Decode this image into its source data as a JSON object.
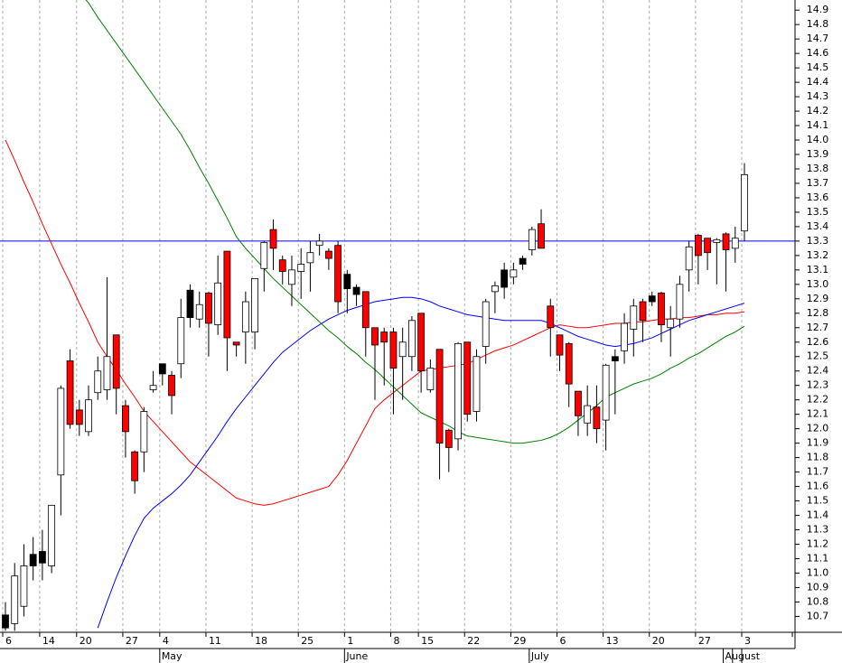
{
  "chart_data": {
    "type": "candlestick",
    "categories": [
      "6",
      null,
      null,
      null,
      "14",
      null,
      null,
      null,
      "20",
      null,
      null,
      null,
      null,
      "27",
      null,
      null,
      null,
      "4",
      null,
      null,
      null,
      null,
      "11",
      null,
      null,
      null,
      null,
      "18",
      null,
      null,
      null,
      null,
      "25",
      null,
      null,
      null,
      null,
      "1",
      null,
      null,
      null,
      null,
      "8",
      null,
      null,
      "15",
      null,
      null,
      null,
      null,
      "22",
      null,
      null,
      null,
      null,
      "29",
      null,
      null,
      null,
      null,
      "6",
      null,
      null,
      null,
      null,
      "13",
      null,
      null,
      null,
      null,
      "20",
      null,
      null,
      null,
      null,
      "27",
      null,
      null,
      null,
      null,
      "3"
    ],
    "months": [
      null,
      null,
      null,
      null,
      null,
      null,
      null,
      null,
      null,
      null,
      null,
      null,
      null,
      null,
      null,
      null,
      null,
      "May",
      null,
      null,
      null,
      null,
      null,
      null,
      null,
      null,
      null,
      null,
      null,
      null,
      null,
      null,
      null,
      null,
      null,
      null,
      null,
      "June",
      null,
      null,
      null,
      null,
      null,
      null,
      null,
      null,
      null,
      null,
      null,
      null,
      null,
      null,
      null,
      null,
      null,
      null,
      null,
      "July",
      null,
      null,
      null,
      null,
      null,
      null,
      null,
      null,
      null,
      null,
      null,
      null,
      null,
      null,
      null,
      null,
      null,
      null,
      null,
      null,
      "August"
    ],
    "open": [
      10.71,
      10.65,
      10.77,
      11.13,
      11.15,
      11.05,
      11.68,
      12.47,
      12.13,
      11.98,
      12.25,
      12.27,
      12.65,
      12.16,
      11.84,
      11.84,
      12.27,
      12.45,
      12.37,
      12.45,
      12.96,
      12.76,
      12.94,
      12.72,
      13.23,
      12.6,
      12.67,
      12.67,
      13.11,
      13.38,
      13.17,
      13.0,
      13.09,
      13.15,
      13.27,
      13.23,
      13.27,
      13.07,
      12.98,
      12.95,
      12.7,
      12.67,
      12.67,
      12.5,
      12.5,
      12.8,
      12.27,
      12.55,
      11.99,
      11.93,
      12.6,
      12.12,
      12.57,
      12.95,
      13.1,
      13.05,
      13.18,
      13.24,
      13.42,
      12.85,
      12.65,
      12.59,
      12.26,
      12.04,
      12.15,
      12.06,
      12.5,
      12.54,
      12.69,
      12.88,
      12.92,
      12.94,
      12.7,
      12.76,
      13.1,
      13.34,
      13.32,
      13.29,
      13.35,
      13.25,
      13.37
    ],
    "high": [
      10.8,
      11.07,
      11.2,
      11.25,
      11.3,
      11.47,
      12.3,
      12.55,
      12.2,
      12.3,
      12.5,
      13.05,
      12.65,
      12.2,
      11.85,
      12.15,
      12.4,
      12.45,
      12.4,
      12.9,
      13.0,
      12.95,
      12.95,
      13.2,
      13.23,
      12.6,
      12.95,
      13.04,
      13.3,
      13.45,
      13.2,
      13.2,
      13.25,
      13.3,
      13.35,
      13.25,
      13.3,
      13.1,
      13.0,
      12.95,
      12.7,
      12.7,
      12.7,
      12.7,
      12.78,
      12.8,
      12.48,
      12.55,
      12.0,
      12.6,
      12.6,
      12.55,
      12.9,
      13.02,
      13.15,
      13.15,
      13.2,
      13.4,
      13.52,
      12.9,
      12.65,
      12.6,
      12.26,
      12.3,
      12.3,
      12.45,
      12.55,
      12.8,
      12.9,
      12.9,
      12.95,
      12.95,
      12.85,
      13.06,
      13.3,
      13.35,
      13.32,
      13.32,
      13.36,
      13.4,
      13.84
    ],
    "low": [
      10.6,
      10.6,
      10.7,
      10.95,
      10.95,
      11.0,
      11.4,
      12.0,
      11.95,
      11.95,
      12.2,
      12.2,
      12.1,
      11.8,
      11.55,
      11.7,
      12.25,
      12.3,
      12.1,
      12.35,
      12.7,
      12.7,
      12.5,
      12.65,
      12.4,
      12.5,
      12.45,
      12.55,
      12.95,
      13.1,
      13.0,
      12.85,
      12.9,
      12.95,
      13.2,
      13.1,
      12.8,
      12.8,
      12.85,
      12.5,
      12.2,
      12.3,
      12.1,
      12.2,
      12.4,
      12.25,
      12.25,
      11.65,
      11.7,
      11.85,
      12.05,
      12.05,
      12.45,
      12.8,
      12.9,
      13.0,
      13.1,
      13.2,
      13.25,
      12.5,
      12.4,
      12.15,
      11.95,
      11.95,
      11.9,
      11.85,
      12.1,
      12.45,
      12.5,
      12.6,
      12.85,
      12.6,
      12.5,
      12.7,
      12.95,
      13.0,
      13.1,
      13.0,
      12.95,
      13.15,
      13.3
    ],
    "close": [
      10.62,
      10.98,
      11.05,
      11.05,
      11.07,
      11.47,
      12.28,
      12.03,
      12.03,
      12.2,
      12.4,
      12.5,
      12.28,
      11.98,
      11.64,
      12.12,
      12.3,
      12.38,
      12.23,
      12.77,
      12.77,
      12.86,
      12.73,
      13.01,
      12.63,
      12.58,
      12.88,
      13.04,
      13.29,
      13.25,
      13.09,
      13.1,
      13.14,
      13.22,
      13.3,
      13.18,
      12.88,
      12.97,
      12.93,
      12.7,
      12.58,
      12.6,
      12.42,
      12.6,
      12.75,
      12.4,
      12.42,
      11.9,
      11.87,
      12.59,
      12.1,
      12.5,
      12.88,
      12.99,
      12.98,
      13.1,
      13.14,
      13.38,
      13.25,
      12.7,
      12.51,
      12.31,
      12.09,
      12.16,
      12.0,
      12.44,
      12.47,
      12.73,
      12.85,
      12.75,
      12.88,
      12.72,
      12.76,
      13.0,
      13.26,
      13.2,
      13.22,
      13.31,
      13.24,
      13.32,
      13.76
    ],
    "candle_colors": [
      "#000000",
      "#ffffff",
      "#ffffff",
      "#000000",
      "#000000",
      "#ffffff",
      "#ffffff",
      "#ff0000",
      "#ff0000",
      "#ffffff",
      "#ffffff",
      "#ffffff",
      "#ff0000",
      "#ff0000",
      "#ff0000",
      "#ffffff",
      "#ffffff",
      "#000000",
      "#ff0000",
      "#ffffff",
      "#000000",
      "#ffffff",
      "#ff0000",
      "#ffffff",
      "#ff0000",
      "#ff0000",
      "#ffffff",
      "#ffffff",
      "#ffffff",
      "#ff0000",
      "#ff0000",
      "#ffffff",
      "#ffffff",
      "#ffffff",
      "#ffffff",
      "#ff0000",
      "#ff0000",
      "#000000",
      "#000000",
      "#ff0000",
      "#ff0000",
      "#ff0000",
      "#ff0000",
      "#ffffff",
      "#ffffff",
      "#ff0000",
      "#ffffff",
      "#ff0000",
      "#ff0000",
      "#ffffff",
      "#ff0000",
      "#ffffff",
      "#ffffff",
      "#ffffff",
      "#000000",
      "#ffffff",
      "#000000",
      "#ffffff",
      "#ff0000",
      "#ff0000",
      "#ff0000",
      "#ff0000",
      "#ff0000",
      "#ffffff",
      "#ff0000",
      "#ffffff",
      "#000000",
      "#ffffff",
      "#ffffff",
      "#ff0000",
      "#000000",
      "#ff0000",
      "#ffffff",
      "#ffffff",
      "#ffffff",
      "#ff0000",
      "#ff0000",
      "#ffffff",
      "#ff0000",
      "#ffffff",
      "#ffffff"
    ],
    "lines": [
      {
        "color": "#ff0000",
        "values": [
          14.0,
          13.86,
          13.71,
          13.57,
          13.42,
          13.28,
          13.14,
          13.01,
          12.87,
          12.74,
          12.6,
          12.5,
          12.41,
          12.31,
          12.22,
          12.12,
          12.05,
          11.98,
          11.91,
          11.84,
          11.77,
          11.72,
          11.67,
          11.62,
          11.57,
          11.52,
          11.5,
          11.48,
          11.47,
          11.48,
          11.5,
          11.52,
          11.54,
          11.56,
          11.58,
          11.6,
          11.68,
          11.78,
          11.9,
          12.02,
          12.14,
          12.2,
          12.25,
          12.3,
          12.35,
          12.4,
          12.41,
          12.42,
          12.43,
          12.44,
          12.45,
          12.48,
          12.51,
          12.54,
          12.56,
          12.58,
          12.61,
          12.64,
          12.67,
          12.7,
          12.72,
          12.71,
          12.7,
          12.7,
          12.71,
          12.72,
          12.73,
          12.73,
          12.74,
          12.74,
          12.75,
          12.76,
          12.76,
          12.77,
          12.77,
          12.78,
          12.79,
          12.79,
          12.8,
          12.8,
          12.81
        ]
      },
      {
        "color": "#0000ff",
        "values": [
          null,
          null,
          null,
          null,
          null,
          null,
          null,
          null,
          null,
          null,
          10.62,
          10.8,
          10.97,
          11.12,
          11.26,
          11.38,
          11.45,
          11.5,
          11.55,
          11.61,
          11.68,
          11.77,
          11.86,
          11.95,
          12.05,
          12.14,
          12.22,
          12.3,
          12.38,
          12.46,
          12.53,
          12.58,
          12.63,
          12.68,
          12.72,
          12.76,
          12.79,
          12.82,
          12.84,
          12.86,
          12.88,
          12.89,
          12.9,
          12.91,
          12.91,
          12.9,
          12.88,
          12.85,
          12.83,
          12.81,
          12.79,
          12.78,
          12.77,
          12.76,
          12.75,
          12.75,
          12.75,
          12.75,
          12.75,
          12.73,
          12.7,
          12.67,
          12.64,
          12.62,
          12.6,
          12.58,
          12.57,
          12.58,
          12.59,
          12.61,
          12.63,
          12.66,
          12.69,
          12.72,
          12.75,
          12.77,
          12.79,
          12.81,
          12.83,
          12.85,
          12.87
        ]
      },
      {
        "color": "#008000",
        "values": [
          null,
          null,
          null,
          null,
          null,
          null,
          null,
          null,
          15.02,
          14.95,
          14.85,
          14.76,
          14.67,
          14.58,
          14.49,
          14.4,
          14.31,
          14.22,
          14.13,
          14.04,
          13.93,
          13.81,
          13.7,
          13.58,
          13.46,
          13.33,
          13.25,
          13.18,
          13.11,
          13.04,
          12.98,
          12.92,
          12.86,
          12.8,
          12.74,
          12.68,
          12.63,
          12.57,
          12.52,
          12.46,
          12.41,
          12.35,
          12.29,
          12.23,
          12.17,
          12.11,
          12.08,
          12.05,
          12.02,
          11.98,
          11.95,
          11.94,
          11.93,
          11.92,
          11.91,
          11.9,
          11.9,
          11.91,
          11.92,
          11.94,
          11.97,
          12.01,
          12.06,
          12.11,
          12.16,
          12.22,
          12.25,
          12.28,
          12.31,
          12.33,
          12.35,
          12.38,
          12.42,
          12.45,
          12.49,
          12.52,
          12.56,
          12.6,
          12.64,
          12.67,
          12.71
        ]
      }
    ],
    "hlines": [
      {
        "value": 13.3,
        "color": "#0000ff"
      }
    ],
    "ylim": [
      10.59,
      14.97
    ],
    "yticks": [
      10.7,
      10.8,
      10.9,
      {
        "value": 11.0,
        "label": "11.0"
      },
      11.1,
      11.2,
      11.3,
      11.4,
      11.5,
      11.6,
      11.7,
      11.8,
      11.9,
      {
        "value": 12.0,
        "label": "12.0"
      },
      12.1,
      12.2,
      12.3,
      12.4,
      12.5,
      12.6,
      12.7,
      12.8,
      12.9,
      {
        "value": 13.0,
        "label": "13.0"
      },
      13.1,
      13.2,
      13.3,
      13.4,
      13.5,
      13.6,
      13.7,
      13.8,
      13.9,
      {
        "value": 14.0,
        "label": "14.0"
      },
      14.1,
      14.2,
      14.3,
      14.4,
      14.5,
      14.6,
      14.7,
      14.8,
      14.9
    ],
    "grid": true
  }
}
